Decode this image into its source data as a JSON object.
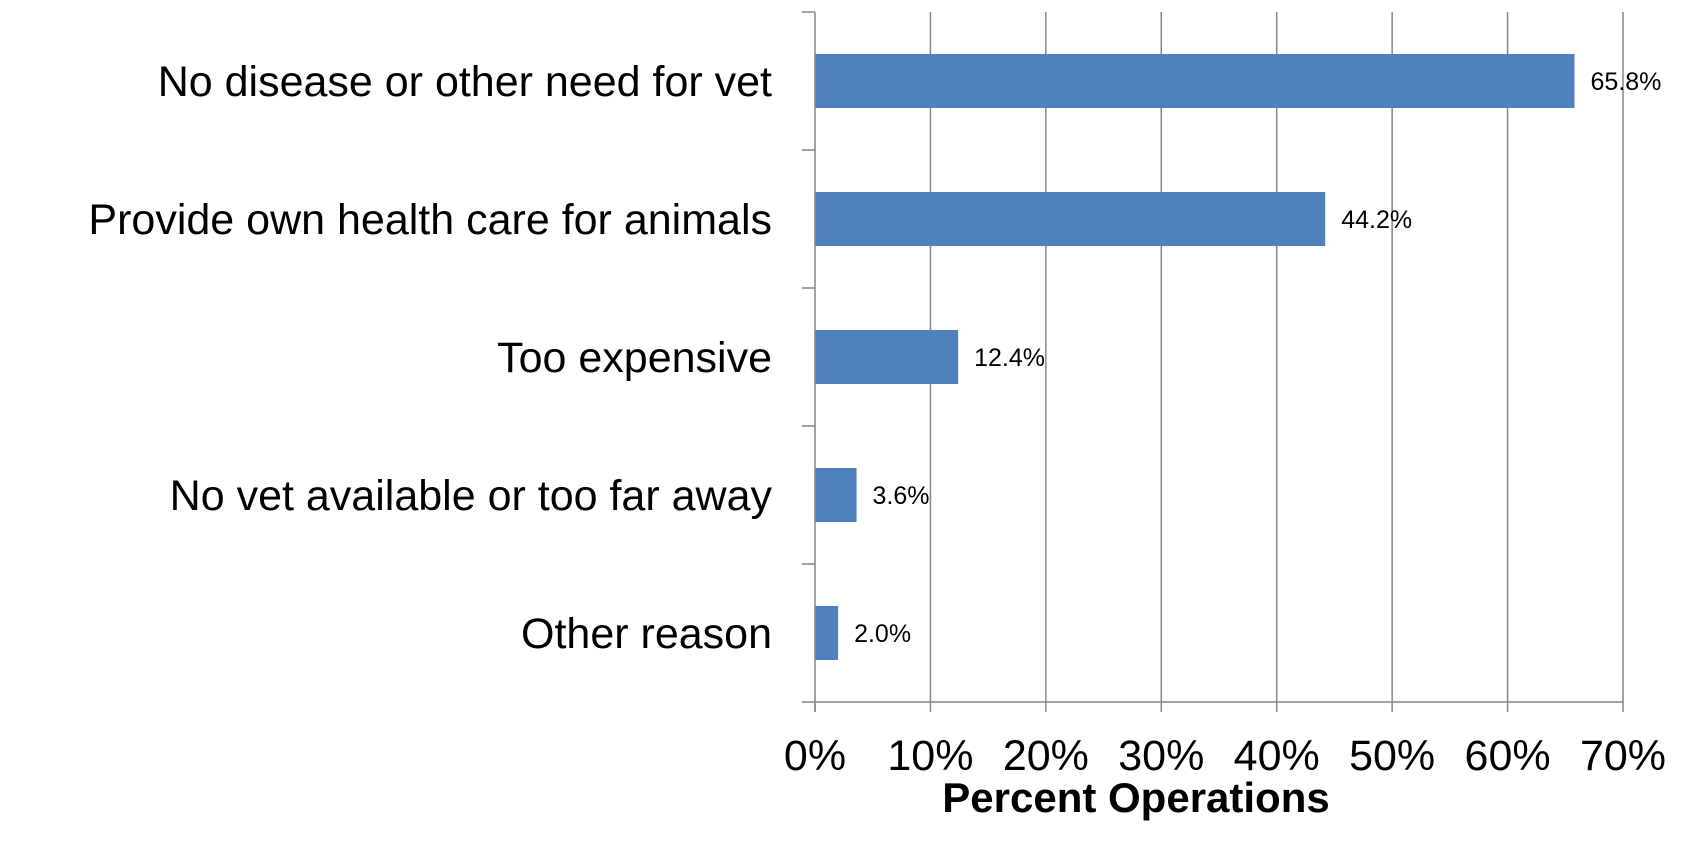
{
  "chart_data": {
    "type": "bar",
    "orientation": "horizontal",
    "title": "",
    "xlabel": "Percent Operations",
    "ylabel": "",
    "categories": [
      "No disease or other need for vet",
      "Provide own health care for animals",
      "Too expensive",
      "No vet available or too far away",
      "Other reason"
    ],
    "values": [
      65.8,
      44.2,
      12.4,
      3.6,
      2.0
    ],
    "data_labels": [
      "65.8%",
      "44.2%",
      "12.4%",
      "3.6%",
      "2.0%"
    ],
    "xlim": [
      0,
      70
    ],
    "xticks": [
      0,
      10,
      20,
      30,
      40,
      50,
      60,
      70
    ],
    "xtick_labels": [
      "0%",
      "10%",
      "20%",
      "30%",
      "40%",
      "50%",
      "60%",
      "70%"
    ],
    "grid": "vertical",
    "legend": "none",
    "bar_color": "#4f81bd",
    "grid_color": "#868686"
  }
}
